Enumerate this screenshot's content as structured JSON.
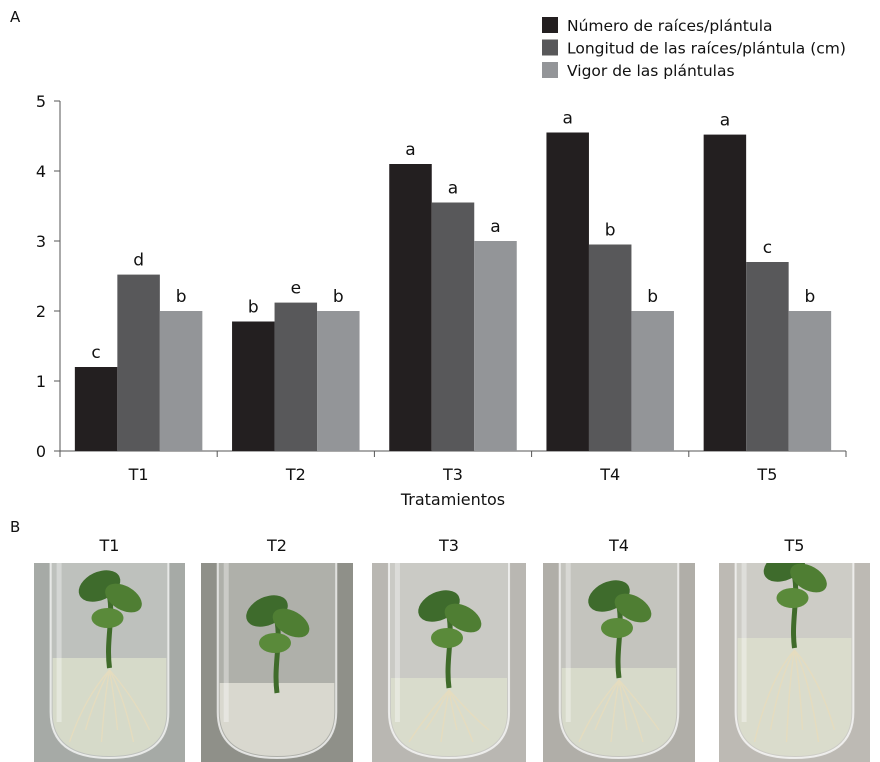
{
  "panel_a_label": "A",
  "panel_b_label": "B",
  "chart_data": {
    "type": "bar",
    "title": "",
    "xlabel": "Tratamientos",
    "ylabel": "",
    "ylim": [
      0,
      5
    ],
    "yticks": [
      0,
      1,
      2,
      3,
      4,
      5
    ],
    "categories": [
      "T1",
      "T2",
      "T3",
      "T4",
      "T5"
    ],
    "grid": false,
    "legend_position": "top-right",
    "series": [
      {
        "name": "Número de raíces/plántula",
        "color": "#231f20",
        "values": [
          1.2,
          1.85,
          4.1,
          4.55,
          4.52
        ],
        "labels": [
          "c",
          "b",
          "a",
          "a",
          "a"
        ]
      },
      {
        "name": "Longitud de las raíces/plántula (cm)",
        "color": "#58585a",
        "values": [
          2.52,
          2.12,
          3.55,
          2.95,
          2.7
        ],
        "labels": [
          "d",
          "e",
          "a",
          "b",
          "c"
        ]
      },
      {
        "name": "Vigor de las plántulas",
        "color": "#939598",
        "values": [
          2.0,
          2.0,
          3.0,
          2.0,
          2.0
        ],
        "labels": [
          "b",
          "b",
          "a",
          "b",
          "b"
        ]
      }
    ]
  },
  "photos": [
    {
      "title": "T1",
      "bg": "#a6aaa6"
    },
    {
      "title": "T2",
      "bg": "#8f9089"
    },
    {
      "title": "T3",
      "bg": "#b9b7b2"
    },
    {
      "title": "T4",
      "bg": "#b0aea8"
    },
    {
      "title": "T5",
      "bg": "#bdbab4"
    }
  ]
}
